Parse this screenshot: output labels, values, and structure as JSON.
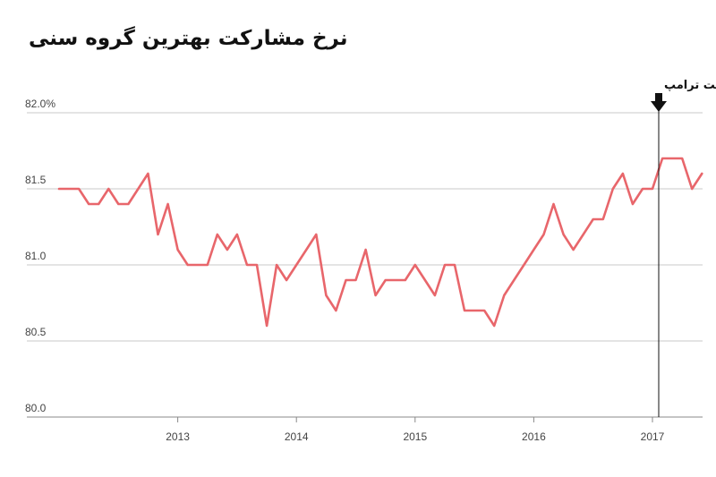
{
  "chart_data": {
    "type": "line",
    "title": "نرخ مشارکت بهترین گروه سنی",
    "xlabel": "",
    "ylabel": "",
    "ylim": [
      80.0,
      82.0
    ],
    "y_ticks": [
      "82.0%",
      "81.5",
      "81.0",
      "80.5",
      "80.0"
    ],
    "x_ticks": [
      "2013",
      "2014",
      "2015",
      "2016",
      "2017"
    ],
    "grid": true,
    "series": [
      {
        "color": "#e8666b",
        "x": [
          "2012-01",
          "2012-02",
          "2012-03",
          "2012-04",
          "2012-05",
          "2012-06",
          "2012-07",
          "2012-08",
          "2012-09",
          "2012-10",
          "2012-11",
          "2012-12",
          "2013-01",
          "2013-02",
          "2013-03",
          "2013-04",
          "2013-05",
          "2013-06",
          "2013-07",
          "2013-08",
          "2013-09",
          "2013-10",
          "2013-11",
          "2013-12",
          "2014-01",
          "2014-02",
          "2014-03",
          "2014-04",
          "2014-05",
          "2014-06",
          "2014-07",
          "2014-08",
          "2014-09",
          "2014-10",
          "2014-11",
          "2014-12",
          "2015-01",
          "2015-02",
          "2015-03",
          "2015-04",
          "2015-05",
          "2015-06",
          "2015-07",
          "2015-08",
          "2015-09",
          "2015-10",
          "2015-11",
          "2015-12",
          "2016-01",
          "2016-02",
          "2016-03",
          "2016-04",
          "2016-05",
          "2016-06",
          "2016-07",
          "2016-08",
          "2016-09",
          "2016-10",
          "2016-11",
          "2016-12",
          "2017-01",
          "2017-02",
          "2017-03",
          "2017-04",
          "2017-05",
          "2017-06"
        ],
        "values": [
          81.5,
          81.5,
          81.5,
          81.4,
          81.4,
          81.5,
          81.4,
          81.4,
          81.5,
          81.6,
          81.2,
          81.4,
          81.1,
          81.0,
          81.0,
          81.0,
          81.2,
          81.1,
          81.2,
          81.0,
          81.0,
          80.6,
          81.0,
          80.9,
          81.0,
          81.1,
          81.2,
          80.8,
          80.7,
          80.9,
          80.9,
          81.1,
          80.8,
          80.9,
          80.9,
          80.9,
          81.0,
          80.9,
          80.8,
          81.0,
          81.0,
          80.7,
          80.7,
          80.7,
          80.6,
          80.8,
          80.9,
          81.0,
          81.1,
          81.2,
          81.4,
          81.2,
          81.1,
          81.2,
          81.3,
          81.3,
          81.5,
          81.6,
          81.4,
          81.5,
          81.5,
          81.7,
          81.7,
          81.7,
          81.5,
          81.6
        ]
      }
    ],
    "annotation": {
      "label": "شروع مدیریت ترامپ",
      "x": "2017-01"
    }
  }
}
